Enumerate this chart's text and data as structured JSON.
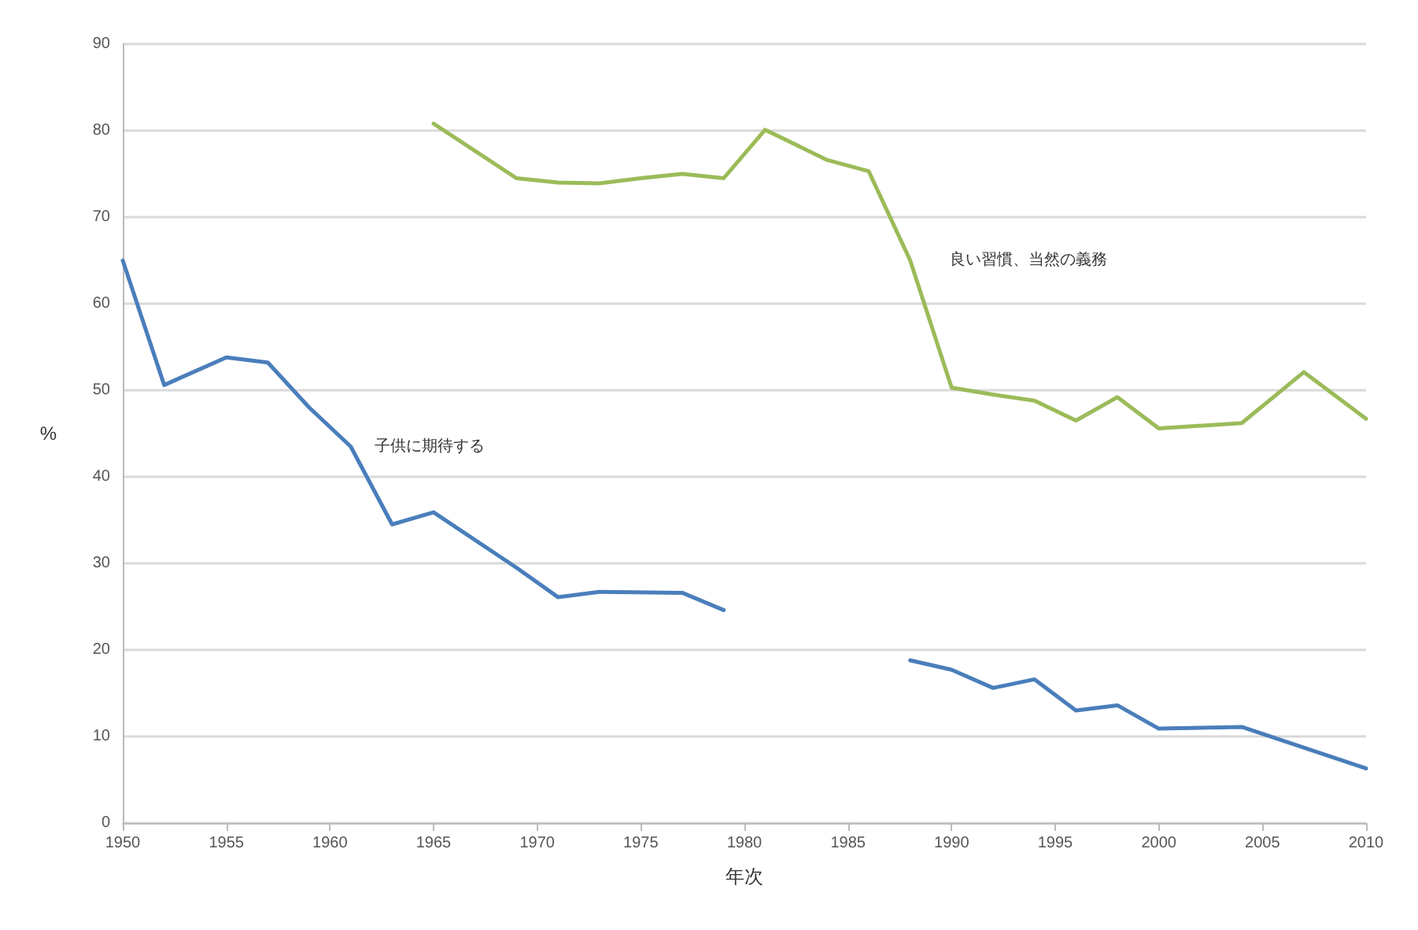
{
  "chart_data": {
    "type": "line",
    "xlabel": "年次",
    "ylabel": "%",
    "xlim": [
      1950,
      2010
    ],
    "xticks": [
      1950,
      1955,
      1960,
      1965,
      1970,
      1975,
      1980,
      1985,
      1990,
      1995,
      2000,
      2005,
      2010
    ],
    "ylim": [
      0,
      90
    ],
    "yticks": [
      0,
      10,
      20,
      30,
      40,
      50,
      60,
      70,
      80,
      90
    ],
    "grid": "y",
    "series": [
      {
        "name": "子供に期待する",
        "color": "#4a7ebb",
        "x": [
          1950,
          1952,
          1955,
          1957,
          1959,
          1961,
          1963,
          1965,
          1969,
          1971,
          1973,
          1977,
          1979,
          1984,
          1988,
          1990,
          1992,
          1994,
          1996,
          1998,
          2000,
          2004,
          2010
        ],
        "values": [
          65,
          50.6,
          53.8,
          53.2,
          48,
          43.5,
          34.5,
          35.9,
          29.5,
          26.1,
          26.7,
          26.6,
          24.6,
          null,
          18.8,
          17.7,
          15.6,
          16.6,
          13,
          13.6,
          10.9,
          11.1,
          6.3
        ]
      },
      {
        "name": "良い習慣、当然の義務",
        "color": "#9bbb59",
        "x": [
          1965,
          1969,
          1971,
          1973,
          1975,
          1977,
          1979,
          1981,
          1984,
          1986,
          1988,
          1990,
          1992,
          1994,
          1996,
          1998,
          2000,
          2004,
          2007,
          2010
        ],
        "values": [
          80.8,
          74.5,
          74,
          73.9,
          74.5,
          75,
          74.5,
          80.1,
          76.6,
          75.3,
          65,
          50.3,
          49.5,
          48.8,
          46.5,
          49.2,
          45.6,
          46.2,
          52.1,
          46.7
        ]
      }
    ]
  }
}
